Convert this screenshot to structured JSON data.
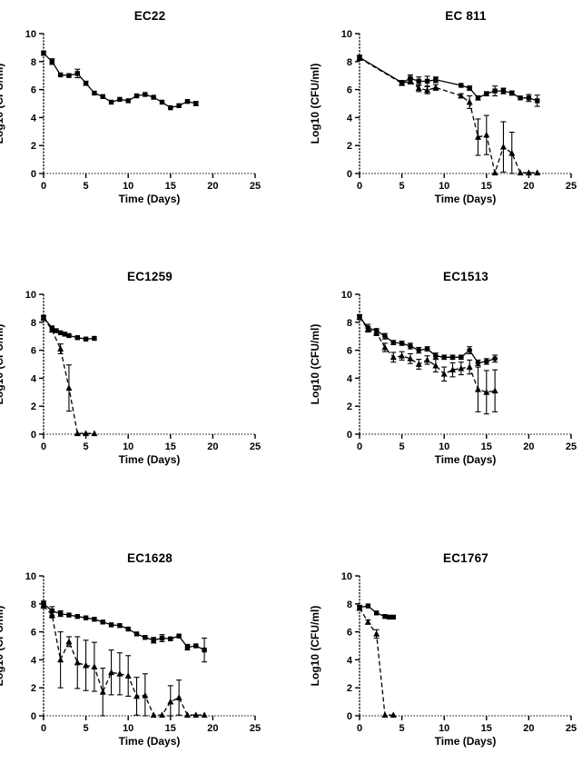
{
  "figure": {
    "background_color": "#ffffff",
    "line_color": "#000000",
    "marker_color": "#000000"
  },
  "chart_data": [
    {
      "type": "line",
      "title": "EC22",
      "xlabel": "Time (Days)",
      "ylabel": "Log10 (CFU/ml)",
      "xlim": [
        0,
        25
      ],
      "ylim": [
        0,
        10
      ],
      "xticks": [
        0,
        5,
        10,
        15,
        20,
        25
      ],
      "yticks": [
        0,
        2,
        4,
        6,
        8,
        10
      ],
      "grid": false,
      "legend": "none",
      "series": [
        {
          "name": "squares-solid",
          "marker": "square",
          "line": "solid",
          "color": "#000000",
          "x": [
            0,
            1,
            2,
            3,
            4,
            5,
            6,
            7,
            8,
            9,
            10,
            11,
            12,
            13,
            14,
            15,
            16,
            17,
            18
          ],
          "y": [
            8.6,
            8.0,
            7.05,
            7.0,
            7.15,
            6.45,
            5.75,
            5.5,
            5.1,
            5.3,
            5.2,
            5.55,
            5.65,
            5.45,
            5.1,
            4.7,
            4.85,
            5.15,
            5.0
          ],
          "err": [
            0.15,
            0.2,
            0.1,
            0.1,
            0.3,
            0.15,
            0.1,
            0.1,
            0.12,
            0.12,
            0.1,
            0.1,
            0.1,
            0.1,
            0.1,
            0.12,
            0.1,
            0.1,
            0.15
          ]
        }
      ]
    },
    {
      "type": "line",
      "title": "EC 811",
      "xlabel": "Time (Days)",
      "ylabel": "Log10 (CFU/ml)",
      "xlim": [
        0,
        25
      ],
      "ylim": [
        0,
        10
      ],
      "xticks": [
        0,
        5,
        10,
        15,
        20,
        25
      ],
      "yticks": [
        0,
        2,
        4,
        6,
        8,
        10
      ],
      "grid": false,
      "legend": "none",
      "series": [
        {
          "name": "squares-solid",
          "marker": "square",
          "line": "solid",
          "color": "#000000",
          "x": [
            0,
            5,
            6,
            7,
            8,
            9,
            12,
            13,
            14,
            15,
            16,
            17,
            18,
            19,
            20,
            21
          ],
          "y": [
            8.3,
            6.5,
            6.8,
            6.6,
            6.6,
            6.7,
            6.3,
            6.1,
            5.4,
            5.7,
            5.9,
            5.9,
            5.75,
            5.4,
            5.4,
            5.2
          ],
          "err": [
            0.15,
            0.15,
            0.25,
            0.3,
            0.35,
            0.2,
            0.12,
            0.15,
            0.15,
            0.15,
            0.35,
            0.2,
            0.15,
            0.12,
            0.25,
            0.4
          ]
        },
        {
          "name": "triangles-dashed",
          "marker": "triangle",
          "line": "dashed",
          "color": "#000000",
          "x": [
            0,
            5,
            6,
            7,
            8,
            9,
            12,
            13,
            14,
            15,
            16,
            17,
            18,
            19,
            20,
            21
          ],
          "y": [
            8.25,
            6.45,
            6.6,
            6.1,
            5.95,
            6.15,
            5.55,
            5.1,
            2.6,
            2.75,
            0.05,
            1.9,
            1.45,
            0.05,
            0.05,
            0.05
          ],
          "err": [
            0.15,
            0.15,
            0.2,
            0.25,
            0.25,
            0.2,
            0.15,
            0.45,
            1.3,
            1.4,
            0,
            1.8,
            1.5,
            0,
            0,
            0
          ]
        }
      ]
    },
    {
      "type": "line",
      "title": "EC1259",
      "xlabel": "Time (Days)",
      "ylabel": "Log10 (CFU/ml)",
      "xlim": [
        0,
        25
      ],
      "ylim": [
        0,
        10
      ],
      "xticks": [
        0,
        5,
        10,
        15,
        20,
        25
      ],
      "yticks": [
        0,
        2,
        4,
        6,
        8,
        10
      ],
      "grid": false,
      "legend": "none",
      "series": [
        {
          "name": "squares-solid",
          "marker": "square",
          "line": "solid",
          "color": "#000000",
          "x": [
            0,
            1,
            1.5,
            2,
            2.5,
            3,
            4,
            5,
            6
          ],
          "y": [
            8.35,
            7.6,
            7.4,
            7.25,
            7.15,
            7.05,
            6.9,
            6.8,
            6.85
          ],
          "err": [
            0.15,
            0.12,
            0.1,
            0.1,
            0.1,
            0.1,
            0.1,
            0.1,
            0.1
          ]
        },
        {
          "name": "triangles-dashed",
          "marker": "triangle",
          "line": "dashed",
          "color": "#000000",
          "x": [
            0,
            1,
            2,
            3,
            4,
            5,
            6
          ],
          "y": [
            8.3,
            7.45,
            6.1,
            3.3,
            0.05,
            0.05,
            0.05
          ],
          "err": [
            0.15,
            0.12,
            0.35,
            1.65,
            0,
            0,
            0
          ]
        }
      ]
    },
    {
      "type": "line",
      "title": "EC1513",
      "xlabel": "Time (Days)",
      "ylabel": "Log10 (CFU/ml)",
      "xlim": [
        0,
        25
      ],
      "ylim": [
        0,
        10
      ],
      "xticks": [
        0,
        5,
        10,
        15,
        20,
        25
      ],
      "yticks": [
        0,
        2,
        4,
        6,
        8,
        10
      ],
      "grid": false,
      "legend": "none",
      "series": [
        {
          "name": "circles-solid",
          "marker": "circle",
          "line": "solid",
          "color": "#000000",
          "x": [
            0,
            1,
            2,
            3,
            4,
            5,
            6,
            7,
            8,
            9,
            10,
            11,
            12,
            13,
            14,
            15,
            16
          ],
          "y": [
            8.4,
            7.6,
            7.4,
            7.0,
            6.55,
            6.5,
            6.3,
            6.0,
            6.1,
            5.6,
            5.5,
            5.5,
            5.5,
            6.0,
            5.1,
            5.2,
            5.4
          ],
          "err": [
            0.15,
            0.25,
            0.15,
            0.2,
            0.15,
            0.15,
            0.2,
            0.2,
            0.15,
            0.2,
            0.15,
            0.15,
            0.15,
            0.25,
            0.2,
            0.2,
            0.25
          ]
        },
        {
          "name": "triangles-dashed",
          "marker": "triangle",
          "line": "dashed",
          "color": "#000000",
          "x": [
            0,
            1,
            2,
            3,
            4,
            5,
            6,
            7,
            8,
            9,
            10,
            11,
            12,
            13,
            14,
            15,
            16
          ],
          "y": [
            8.35,
            7.5,
            7.25,
            6.2,
            5.5,
            5.6,
            5.4,
            5.0,
            5.3,
            4.9,
            4.3,
            4.6,
            4.7,
            4.8,
            3.2,
            3.0,
            3.1
          ],
          "err": [
            0.15,
            0.2,
            0.2,
            0.3,
            0.35,
            0.3,
            0.35,
            0.35,
            0.3,
            0.45,
            0.5,
            0.5,
            0.45,
            0.5,
            1.6,
            1.55,
            1.5
          ]
        }
      ]
    },
    {
      "type": "line",
      "title": "EC1628",
      "xlabel": "Time (Days)",
      "ylabel": "Log10 (CFU/ml)",
      "xlim": [
        0,
        25
      ],
      "ylim": [
        0,
        10
      ],
      "xticks": [
        0,
        5,
        10,
        15,
        20,
        25
      ],
      "yticks": [
        0,
        2,
        4,
        6,
        8,
        10
      ],
      "grid": false,
      "legend": "none",
      "series": [
        {
          "name": "squares-solid",
          "marker": "square",
          "line": "solid",
          "color": "#000000",
          "x": [
            0,
            1,
            2,
            3,
            4,
            5,
            6,
            7,
            8,
            9,
            10,
            11,
            12,
            13,
            14,
            15,
            16,
            17,
            18,
            19
          ],
          "y": [
            8.0,
            7.5,
            7.3,
            7.2,
            7.1,
            7.0,
            6.9,
            6.7,
            6.5,
            6.45,
            6.2,
            5.85,
            5.6,
            5.4,
            5.55,
            5.5,
            5.7,
            4.9,
            5.0,
            4.7
          ],
          "err": [
            0.2,
            0.3,
            0.2,
            0.12,
            0.1,
            0.1,
            0.1,
            0.1,
            0.1,
            0.1,
            0.1,
            0.1,
            0.1,
            0.2,
            0.25,
            0.12,
            0.12,
            0.2,
            0.1,
            0.85
          ]
        },
        {
          "name": "triangles-dashed",
          "marker": "triangle",
          "line": "dashed",
          "color": "#000000",
          "x": [
            0,
            1,
            2,
            3,
            4,
            5,
            6,
            7,
            8,
            9,
            10,
            11,
            12,
            13,
            14,
            15,
            16,
            17,
            18,
            19
          ],
          "y": [
            7.85,
            7.2,
            4.0,
            5.3,
            3.8,
            3.6,
            3.5,
            1.7,
            3.1,
            3.0,
            2.85,
            1.4,
            1.45,
            0.05,
            0.05,
            1.0,
            1.3,
            0.05,
            0.05,
            0.05
          ],
          "err": [
            0.15,
            0.2,
            2.0,
            0.35,
            1.85,
            1.8,
            1.75,
            1.7,
            1.6,
            1.5,
            1.45,
            1.35,
            1.55,
            0,
            0,
            1.15,
            1.25,
            0,
            0,
            0
          ]
        }
      ]
    },
    {
      "type": "line",
      "title": "EC1767",
      "xlabel": "Time (Days)",
      "ylabel": "Log10 (CFU/ml)",
      "xlim": [
        0,
        25
      ],
      "ylim": [
        0,
        10
      ],
      "xticks": [
        0,
        5,
        10,
        15,
        20,
        25
      ],
      "yticks": [
        0,
        2,
        4,
        6,
        8,
        10
      ],
      "grid": false,
      "legend": "none",
      "series": [
        {
          "name": "squares-solid",
          "marker": "square",
          "line": "solid",
          "color": "#000000",
          "x": [
            0,
            1,
            2,
            3,
            3.5,
            4
          ],
          "y": [
            7.75,
            7.85,
            7.35,
            7.1,
            7.05,
            7.05
          ],
          "err": [
            0.15,
            0.1,
            0.1,
            0.1,
            0.08,
            0.08
          ]
        },
        {
          "name": "triangles-dashed",
          "marker": "triangle",
          "line": "dashed",
          "color": "#000000",
          "x": [
            0,
            1,
            2,
            3,
            4
          ],
          "y": [
            7.7,
            6.7,
            5.85,
            0.05,
            0.05
          ],
          "err": [
            0.15,
            0.15,
            0.3,
            0,
            0
          ]
        }
      ]
    }
  ]
}
